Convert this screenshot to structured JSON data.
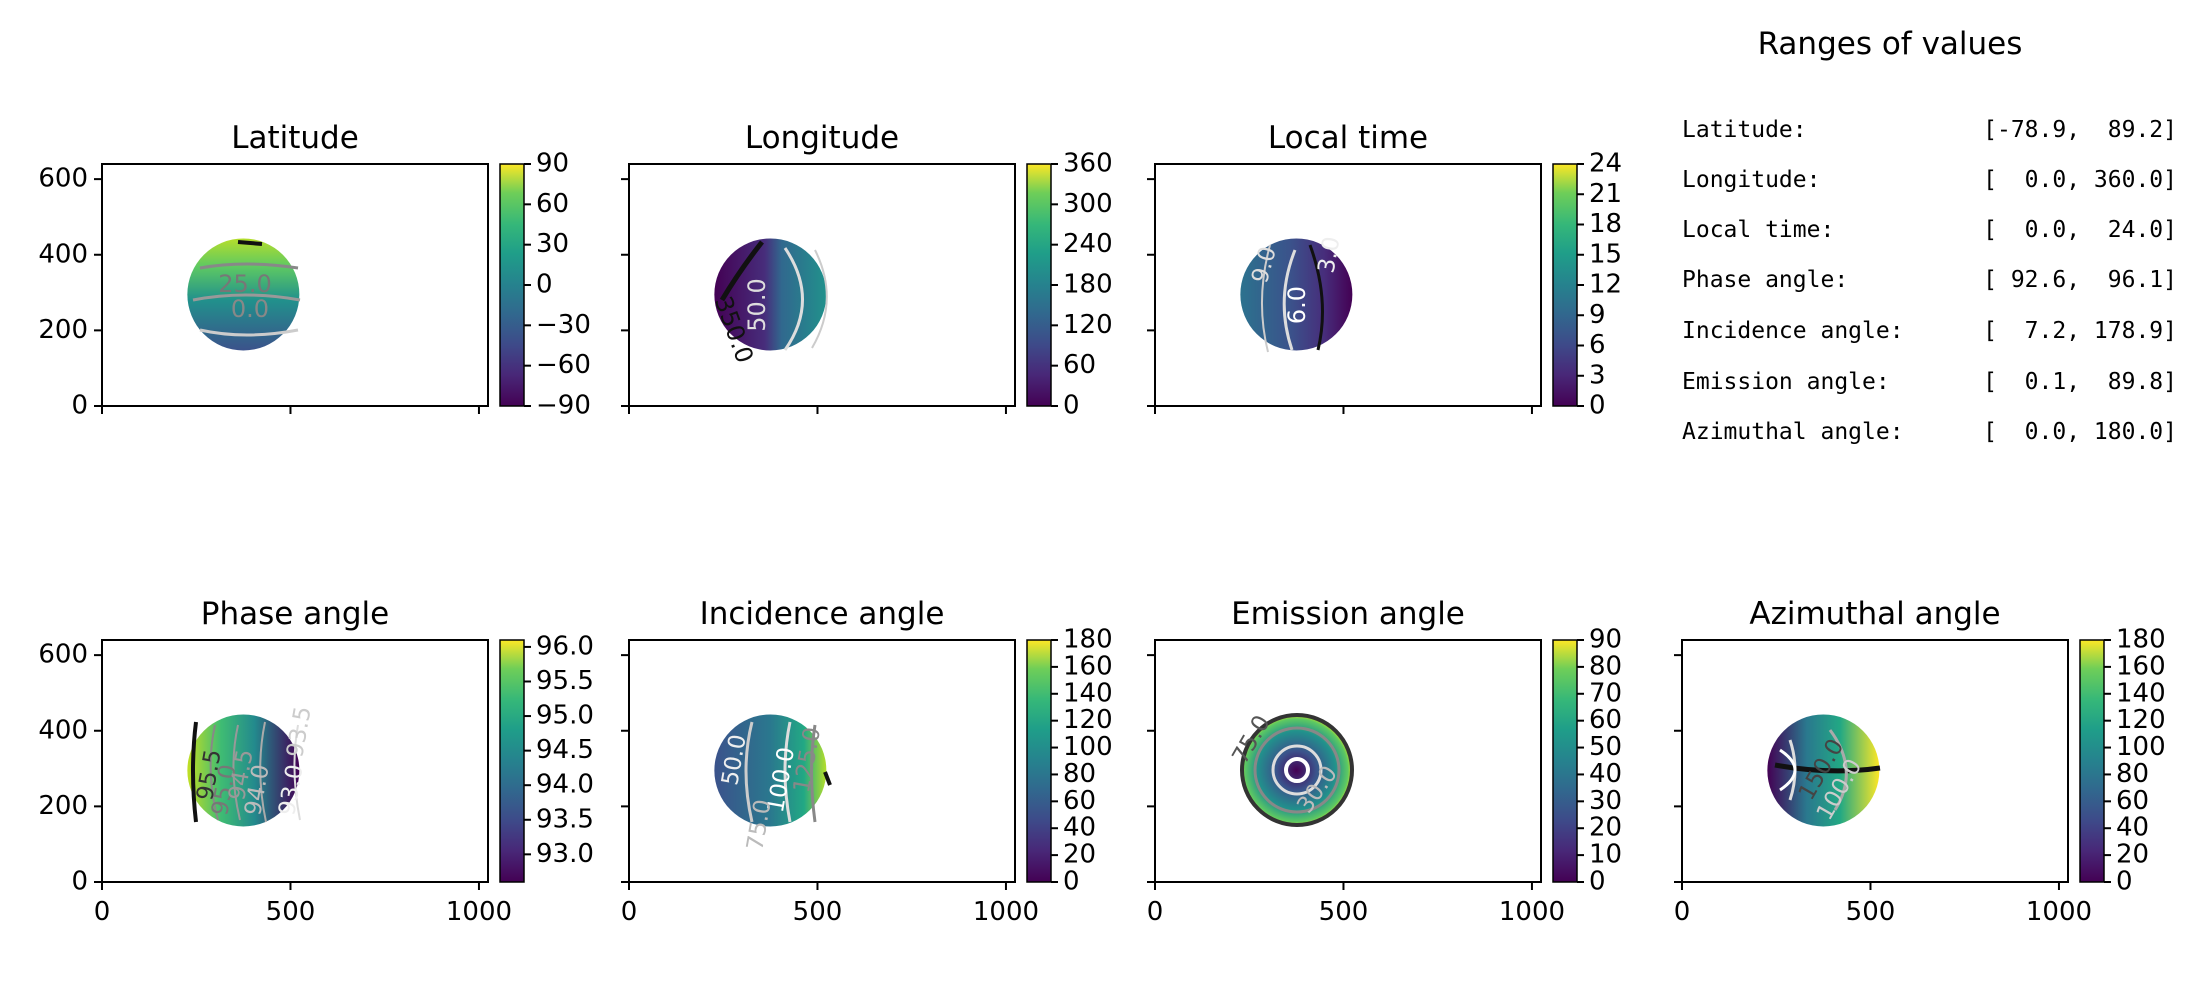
{
  "chart_data": [
    {
      "type": "heatmap",
      "title": "Latitude",
      "xlim": [
        0,
        1024
      ],
      "ylim": [
        0,
        640
      ],
      "x_ticks": [],
      "y_ticks": [
        0,
        200,
        400,
        600
      ],
      "colorbar": {
        "min": -90,
        "max": 90,
        "ticks": [
          "90",
          "60",
          "30",
          "0",
          "−30",
          "−60",
          "−90"
        ],
        "tick_values": [
          90,
          60,
          30,
          0,
          -30,
          -60,
          -90
        ]
      },
      "contour_labels": [
        "25.0",
        "0.0"
      ]
    },
    {
      "type": "heatmap",
      "title": "Longitude",
      "xlim": [
        0,
        1024
      ],
      "ylim": [
        0,
        640
      ],
      "x_ticks": [],
      "y_ticks": [],
      "colorbar": {
        "min": 0,
        "max": 360,
        "ticks": [
          "360",
          "300",
          "240",
          "180",
          "120",
          "60",
          "0"
        ],
        "tick_values": [
          360,
          300,
          240,
          180,
          120,
          60,
          0
        ]
      },
      "contour_labels": [
        "50.0",
        "350.0"
      ]
    },
    {
      "type": "heatmap",
      "title": "Local time",
      "xlim": [
        0,
        1024
      ],
      "ylim": [
        0,
        640
      ],
      "x_ticks": [],
      "y_ticks": [],
      "colorbar": {
        "min": 0,
        "max": 24,
        "ticks": [
          "24",
          "21",
          "18",
          "15",
          "12",
          "9",
          "6",
          "3",
          "0"
        ],
        "tick_values": [
          24,
          21,
          18,
          15,
          12,
          9,
          6,
          3,
          0
        ]
      },
      "contour_labels": [
        "9.0",
        "6.0",
        "3.0"
      ]
    },
    {
      "type": "heatmap",
      "title": "Phase angle",
      "xlim": [
        0,
        1024
      ],
      "ylim": [
        0,
        640
      ],
      "x_ticks": [
        "0",
        "500",
        "1000"
      ],
      "y_ticks": [
        0,
        200,
        400,
        600
      ],
      "colorbar": {
        "min": 92.6,
        "max": 96.1,
        "ticks": [
          "96.0",
          "95.5",
          "95.0",
          "94.5",
          "94.0",
          "93.5",
          "93.0"
        ],
        "tick_values": [
          96.0,
          95.5,
          95.0,
          94.5,
          94.0,
          93.5,
          93.0
        ]
      },
      "contour_labels": [
        "95.5",
        "95.0",
        "94.5",
        "94.0",
        "93.0",
        "93.5"
      ]
    },
    {
      "type": "heatmap",
      "title": "Incidence angle",
      "xlim": [
        0,
        1024
      ],
      "ylim": [
        0,
        640
      ],
      "x_ticks": [
        "0",
        "500",
        "1000"
      ],
      "y_ticks": [],
      "colorbar": {
        "min": 0,
        "max": 180,
        "ticks": [
          "180",
          "160",
          "140",
          "120",
          "100",
          "80",
          "60",
          "40",
          "20",
          "0"
        ],
        "tick_values": [
          180,
          160,
          140,
          120,
          100,
          80,
          60,
          40,
          20,
          0
        ]
      },
      "contour_labels": [
        "50.0",
        "100.0",
        "125.0",
        "75.0"
      ]
    },
    {
      "type": "heatmap",
      "title": "Emission angle",
      "xlim": [
        0,
        1024
      ],
      "ylim": [
        0,
        640
      ],
      "x_ticks": [
        "0",
        "500",
        "1000"
      ],
      "y_ticks": [],
      "colorbar": {
        "min": 0,
        "max": 90,
        "ticks": [
          "90",
          "80",
          "70",
          "60",
          "50",
          "40",
          "30",
          "20",
          "10",
          "0"
        ],
        "tick_values": [
          90,
          80,
          70,
          60,
          50,
          40,
          30,
          20,
          10,
          0
        ]
      },
      "contour_labels": [
        "75.0",
        "30.0"
      ]
    },
    {
      "type": "heatmap",
      "title": "Azimuthal angle",
      "xlim": [
        0,
        1024
      ],
      "ylim": [
        0,
        640
      ],
      "x_ticks": [
        "0",
        "500",
        "1000"
      ],
      "y_ticks": [],
      "colorbar": {
        "min": 0,
        "max": 180,
        "ticks": [
          "180",
          "160",
          "140",
          "120",
          "100",
          "80",
          "60",
          "40",
          "20",
          "0"
        ],
        "tick_values": [
          180,
          160,
          140,
          120,
          100,
          80,
          60,
          40,
          20,
          0
        ]
      },
      "contour_labels": [
        "150.0",
        "100.0"
      ]
    }
  ],
  "ranges": {
    "title": "Ranges of values",
    "rows": [
      {
        "name": "Latitude:",
        "value": "[-78.9,  89.2]"
      },
      {
        "name": "Longitude:",
        "value": "[  0.0, 360.0]"
      },
      {
        "name": "Local time:",
        "value": "[  0.0,  24.0]"
      },
      {
        "name": "Phase angle:",
        "value": "[ 92.6,  96.1]"
      },
      {
        "name": "Incidence angle:",
        "value": "[  7.2, 178.9]"
      },
      {
        "name": "Emission angle:",
        "value": "[  0.1,  89.8]"
      },
      {
        "name": "Azimuthal angle:",
        "value": "[  0.0, 180.0]"
      }
    ]
  },
  "colors": {
    "viridis_low": "#440154",
    "viridis_mid": "#21918c",
    "viridis_high": "#fde725"
  }
}
